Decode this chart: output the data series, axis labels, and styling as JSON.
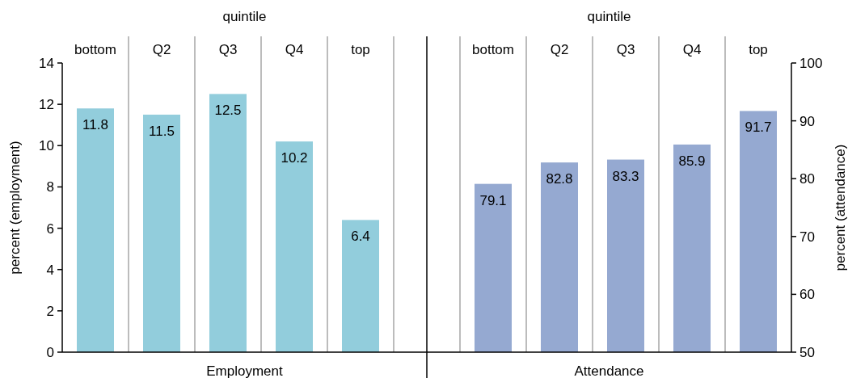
{
  "chart_data": [
    {
      "type": "bar",
      "title": "quintile",
      "xlabel": "Employment",
      "ylabel": "percent (employment)",
      "categories": [
        "bottom",
        "Q2",
        "Q3",
        "Q4",
        "top"
      ],
      "series": [
        {
          "color": "#92cddc",
          "values": [
            11.8,
            11.5,
            12.5,
            10.2,
            6.4
          ]
        }
      ],
      "ylim": [
        0,
        14
      ],
      "yticks": [
        0,
        2,
        4,
        6,
        8,
        10,
        12,
        14
      ],
      "data_labels": true
    },
    {
      "type": "bar",
      "title": "quintile",
      "xlabel": "Attendance",
      "y2label": "percent (attendance)",
      "categories": [
        "bottom",
        "Q2",
        "Q3",
        "Q4",
        "top"
      ],
      "series": [
        {
          "color": "#95a9d1",
          "values": [
            79.1,
            82.8,
            83.3,
            85.9,
            91.7
          ],
          "axis": "y2"
        }
      ],
      "y2lim": [
        50,
        100
      ],
      "y2ticks": [
        50,
        60,
        70,
        80,
        90,
        100
      ],
      "data_labels": true
    }
  ]
}
